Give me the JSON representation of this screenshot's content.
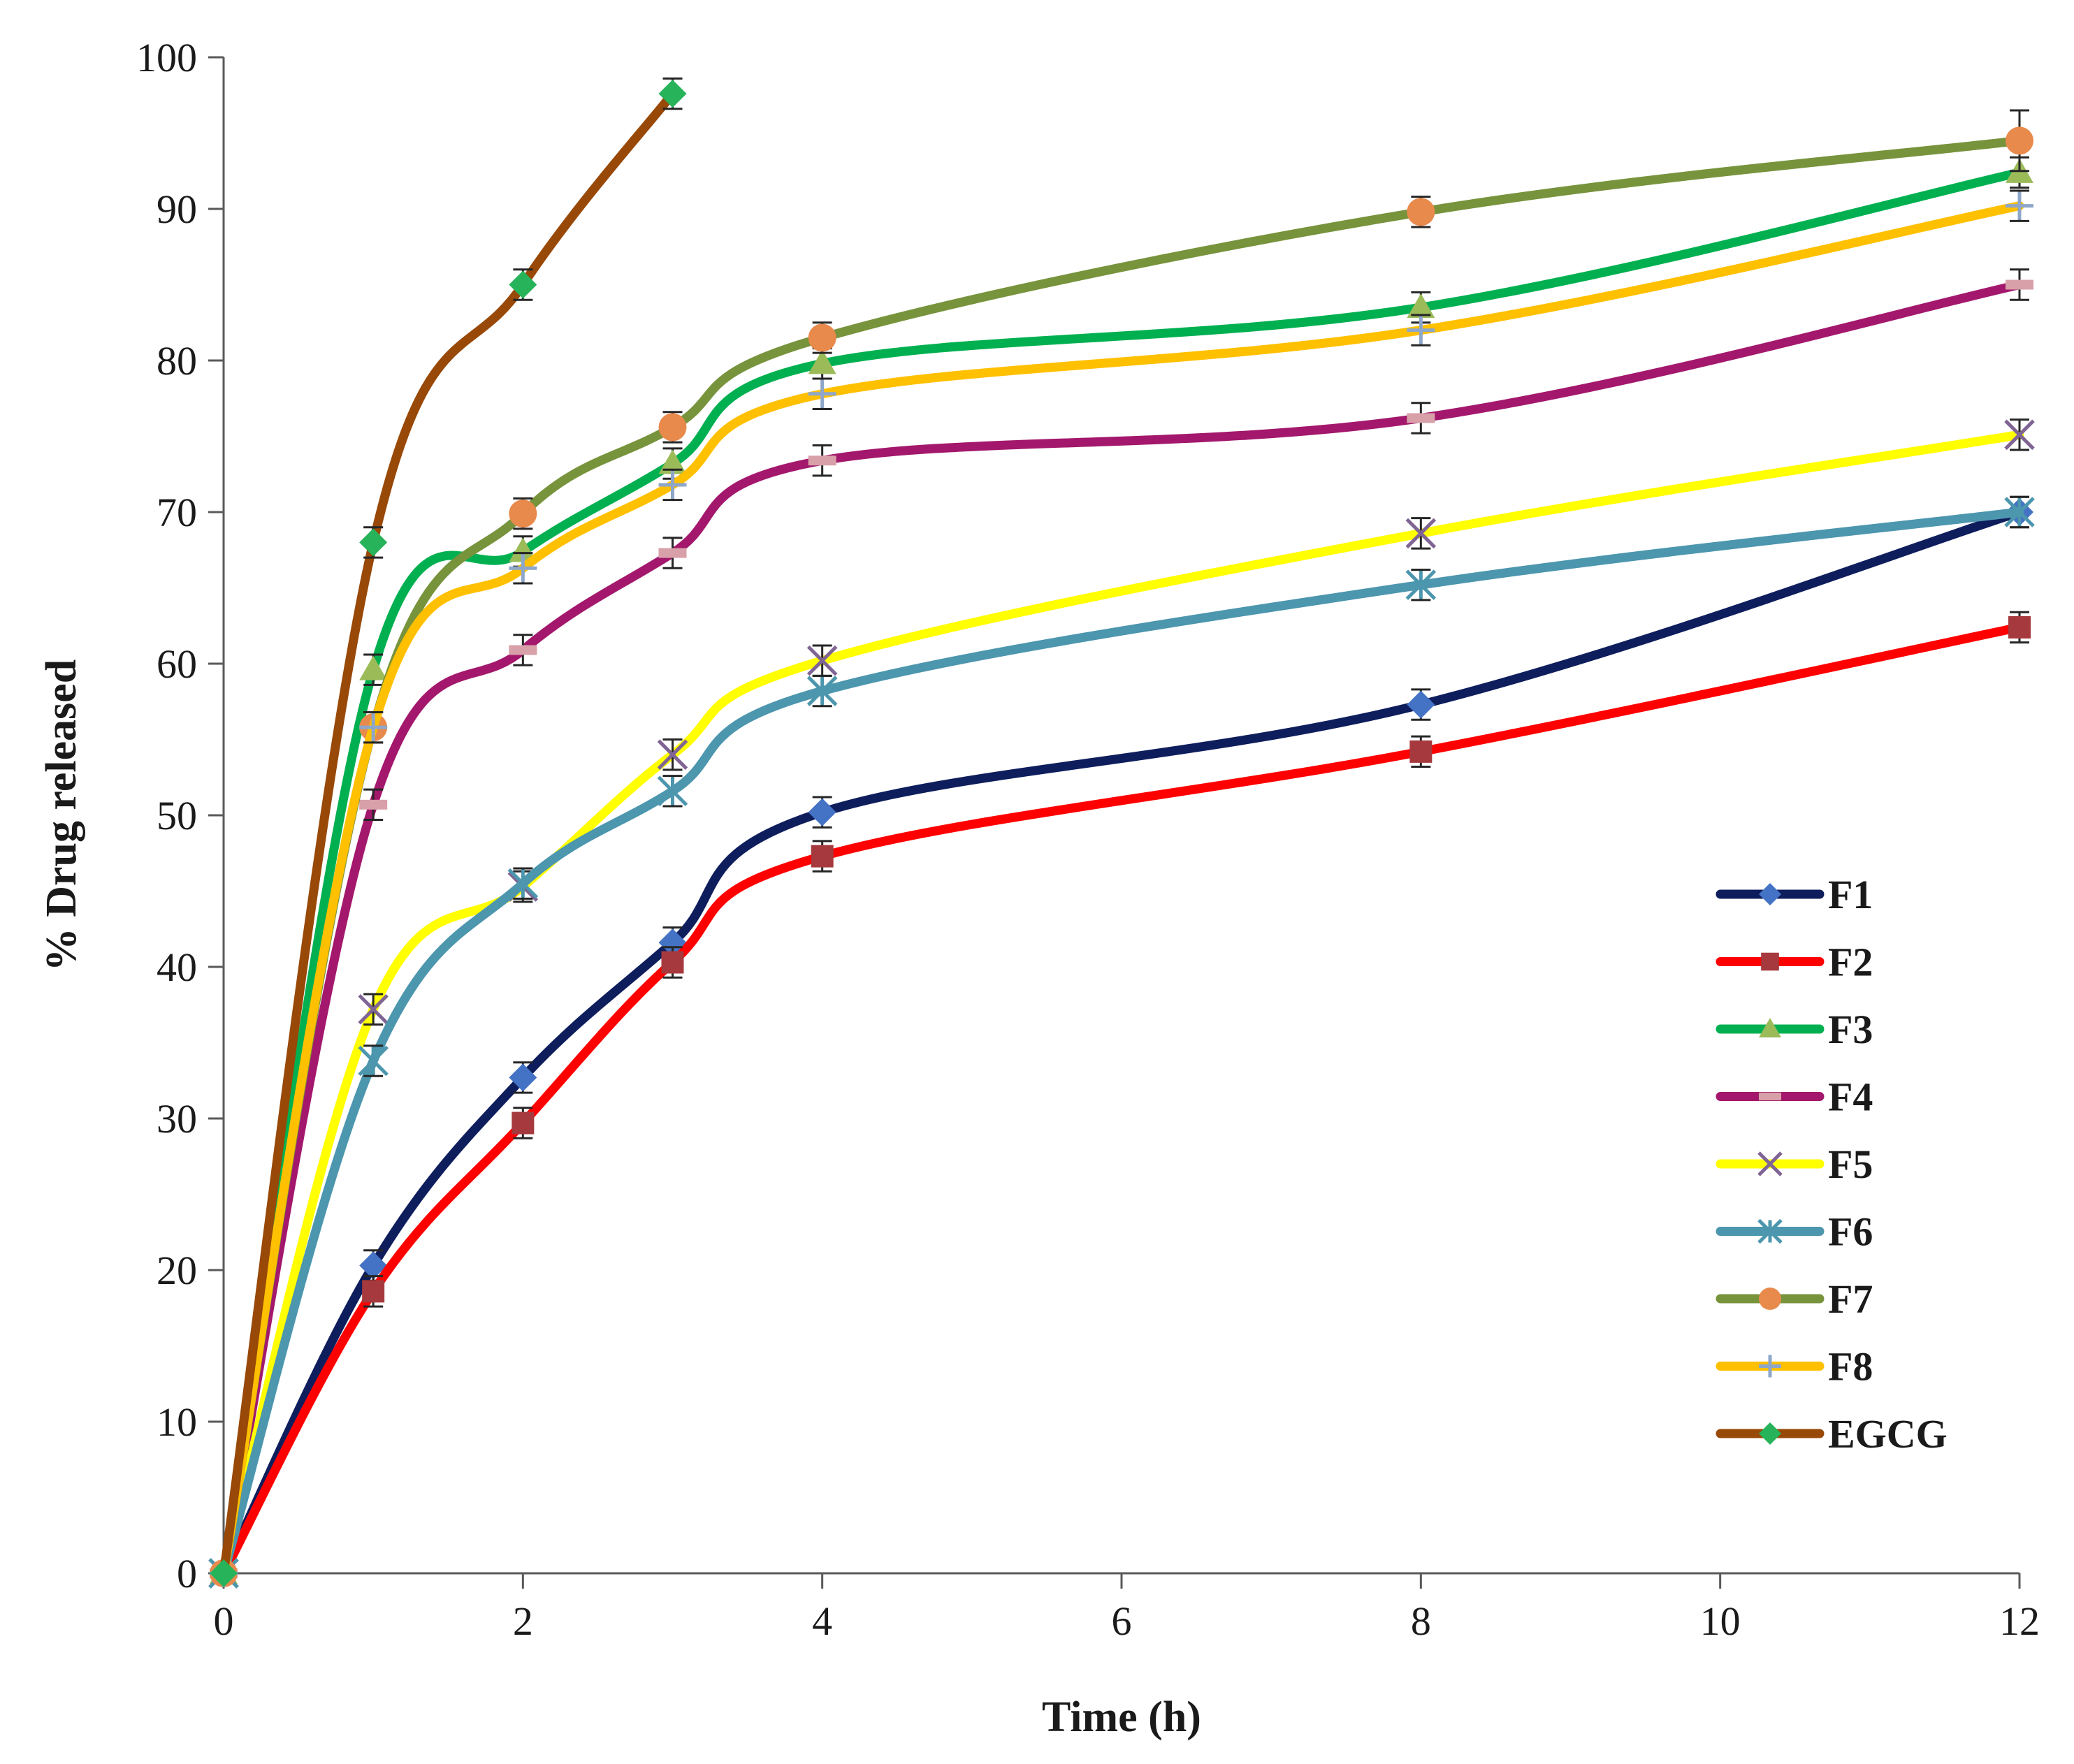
{
  "chart_data": {
    "type": "line",
    "xlabel": "Time (h)",
    "ylabel": "% Drug released",
    "xlim": [
      0,
      12
    ],
    "ylim": [
      0,
      100
    ],
    "xticks": [
      "0",
      "2",
      "4",
      "6",
      "8",
      "10",
      "12"
    ],
    "yticks": [
      "0",
      "10",
      "20",
      "30",
      "40",
      "50",
      "60",
      "70",
      "80",
      "90",
      "100"
    ],
    "grid": false,
    "legend_position": "right",
    "smooth_lines": true,
    "error_bars": true,
    "series": [
      {
        "name": "F1",
        "color": "#0e1d5c",
        "marker": "diamond",
        "marker_color": "#4472c4",
        "x": [
          0,
          1,
          2,
          3,
          4,
          8,
          12
        ],
        "y": [
          0,
          20.3,
          32.7,
          41.6,
          50.2,
          57.3,
          70.0
        ],
        "err": [
          0,
          1.0,
          1.0,
          1.0,
          1.0,
          1.0,
          1.0
        ]
      },
      {
        "name": "F2",
        "color": "#ff0000",
        "marker": "square",
        "marker_color": "#a5393d",
        "x": [
          0,
          1,
          2,
          3,
          4,
          8,
          12
        ],
        "y": [
          0,
          18.6,
          29.7,
          40.3,
          47.3,
          54.2,
          62.4
        ],
        "err": [
          0,
          1.0,
          1.0,
          1.0,
          1.0,
          1.0,
          1.0
        ]
      },
      {
        "name": "F3",
        "color": "#00b050",
        "marker": "triangle",
        "marker_color": "#9bbb59",
        "x": [
          0,
          1,
          2,
          3,
          4,
          8,
          12
        ],
        "y": [
          0,
          59.6,
          67.4,
          73.2,
          79.8,
          83.5,
          92.4
        ],
        "err": [
          0,
          1.0,
          1.0,
          1.0,
          1.0,
          1.0,
          1.0
        ]
      },
      {
        "name": "F4",
        "color": "#a3186c",
        "marker": "dash",
        "marker_color": "#d8a0a8",
        "x": [
          0,
          1,
          2,
          3,
          4,
          8,
          12
        ],
        "y": [
          0,
          50.7,
          60.9,
          67.3,
          73.4,
          76.2,
          85.0
        ],
        "err": [
          0,
          1.0,
          1.0,
          1.0,
          1.0,
          1.0,
          1.0
        ]
      },
      {
        "name": "F5",
        "color": "#ffff00",
        "marker": "x",
        "marker_color": "#7f6494",
        "x": [
          0,
          1,
          2,
          3,
          4,
          8,
          12
        ],
        "y": [
          0,
          37.2,
          45.3,
          54.0,
          60.2,
          68.6,
          75.1
        ],
        "err": [
          0,
          1.0,
          1.0,
          1.0,
          1.0,
          1.0,
          1.0
        ]
      },
      {
        "name": "F6",
        "color": "#4c96ae",
        "marker": "star",
        "marker_color": "#4c96ae",
        "x": [
          0,
          1,
          2,
          3,
          4,
          8,
          12
        ],
        "y": [
          0,
          33.8,
          45.5,
          51.6,
          58.2,
          65.2,
          70.0
        ],
        "err": [
          0,
          1.0,
          1.0,
          1.0,
          1.0,
          1.0,
          1.0
        ]
      },
      {
        "name": "F7",
        "color": "#77933c",
        "marker": "circle",
        "marker_color": "#e88a4c",
        "x": [
          0,
          1,
          2,
          3,
          4,
          8,
          12
        ],
        "y": [
          0,
          55.8,
          69.9,
          75.6,
          81.5,
          89.8,
          94.5
        ],
        "err": [
          0,
          1.0,
          1.0,
          1.0,
          1.0,
          1.0,
          2.0
        ]
      },
      {
        "name": "F8",
        "color": "#ffc000",
        "marker": "plus",
        "marker_color": "#8ea6c9",
        "x": [
          0,
          1,
          2,
          3,
          4,
          8,
          12
        ],
        "y": [
          0,
          55.8,
          66.3,
          71.8,
          77.8,
          82.0,
          90.2
        ],
        "err": [
          0,
          1.0,
          1.0,
          1.0,
          1.0,
          1.0,
          1.0
        ]
      },
      {
        "name": "EGCG",
        "color": "#984807",
        "marker": "diamond",
        "marker_color": "#27b35a",
        "x": [
          0,
          1,
          2,
          3
        ],
        "y": [
          0,
          68.0,
          85.0,
          97.6
        ],
        "err": [
          0,
          1.0,
          1.0,
          1.0
        ]
      }
    ]
  }
}
